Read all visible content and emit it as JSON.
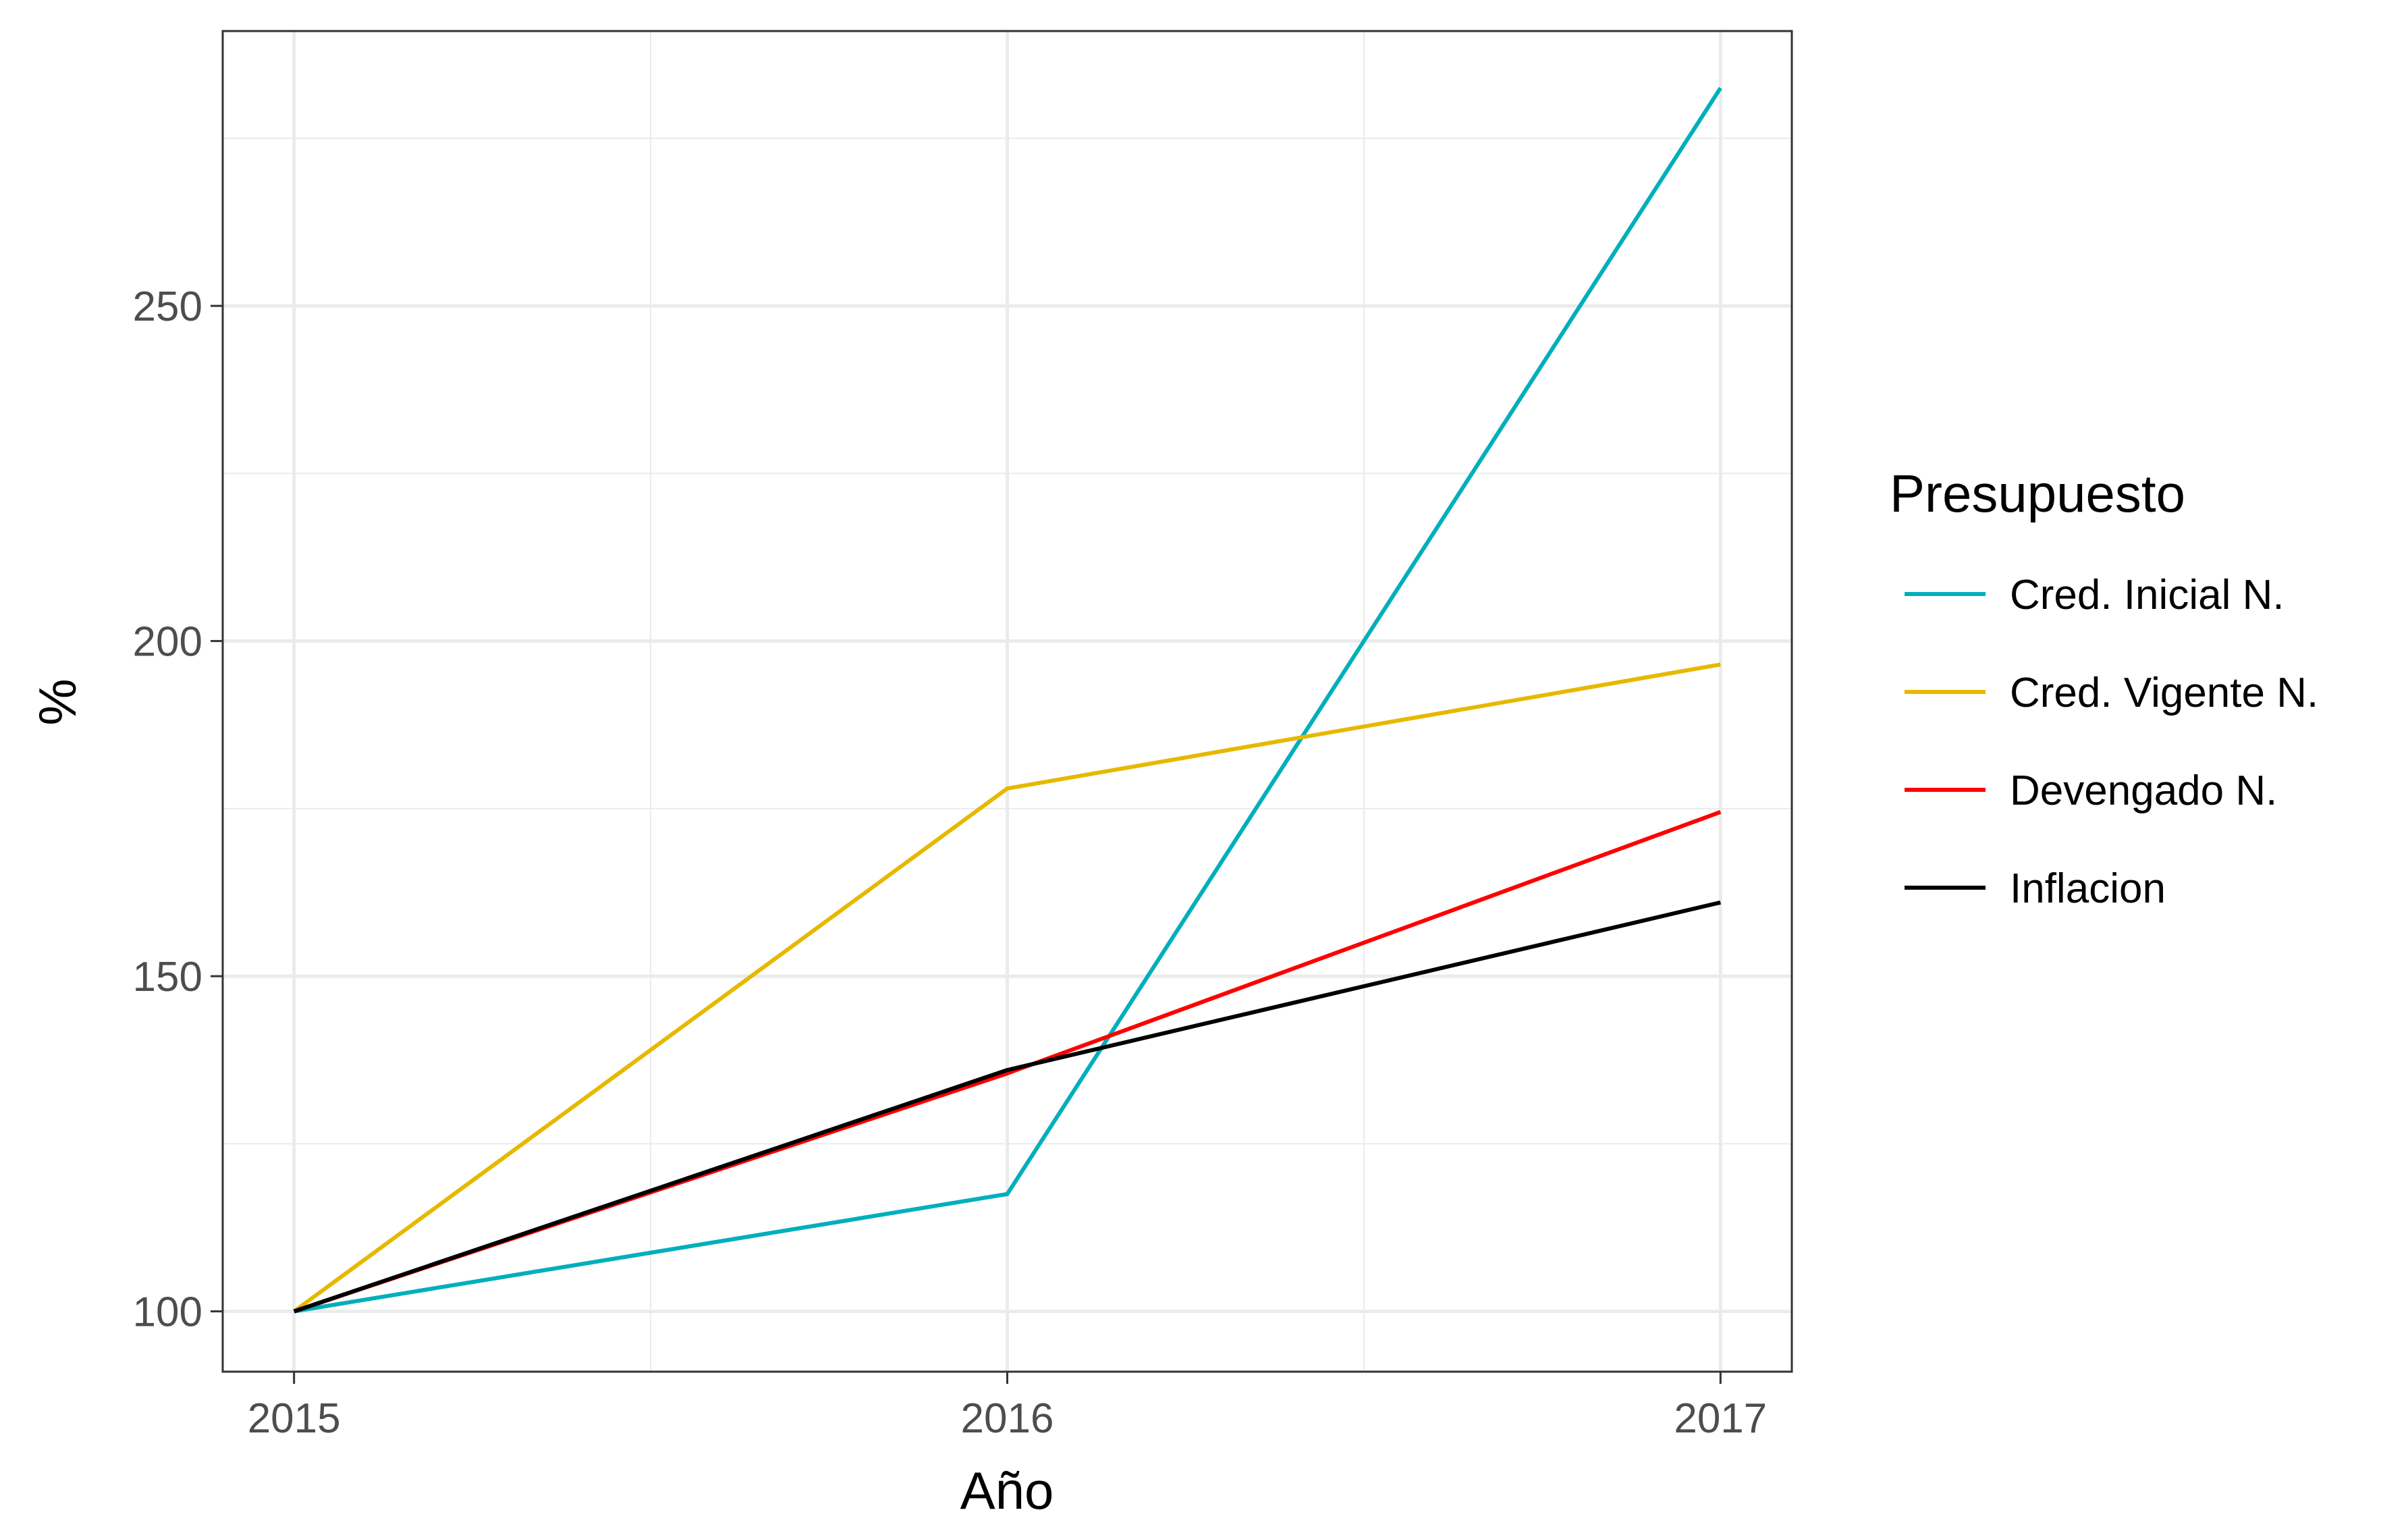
{
  "chart_data": {
    "type": "line",
    "title": "",
    "xlabel": "Año",
    "ylabel": "%",
    "x": [
      2015,
      2016,
      2017
    ],
    "x_ticks": [
      "2015",
      "2016",
      "2017"
    ],
    "xlim": [
      2014.9,
      2017.1
    ],
    "y_ticks": [
      "100",
      "150",
      "200",
      "250"
    ],
    "ylim": [
      91,
      291
    ],
    "grid": true,
    "legend": {
      "title": "Presupuesto",
      "placement": "right"
    },
    "series": [
      {
        "name": "Cred. Inicial N.",
        "color": "#00AFBB",
        "values": [
          100,
          117.5,
          282.5
        ]
      },
      {
        "name": "Cred. Vigente N.",
        "color": "#E7B800",
        "values": [
          100,
          178,
          196.5
        ]
      },
      {
        "name": "Devengado N.",
        "color": "#FF0000",
        "values": [
          100,
          135.5,
          174.5
        ]
      },
      {
        "name": "Inflacion",
        "color": "#000000",
        "values": [
          100,
          136,
          161
        ]
      }
    ]
  }
}
